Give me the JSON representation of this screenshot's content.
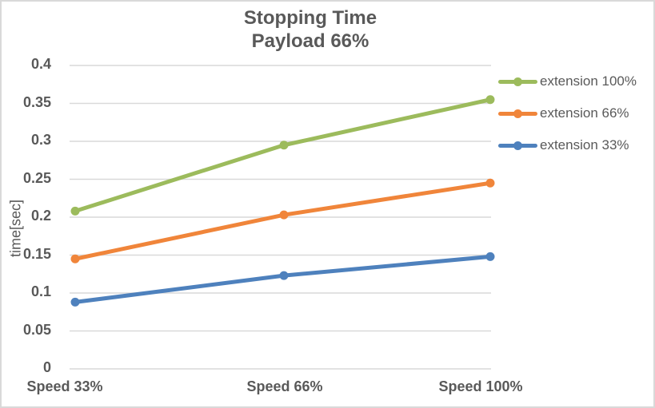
{
  "chart_data": {
    "type": "line",
    "title": "Stopping Time",
    "subtitle": "Payload 66%",
    "categories": [
      "Speed 33%",
      "Speed 66%",
      "Speed 100%"
    ],
    "series": [
      {
        "name": "extension 100%",
        "color": "#9CBB5C",
        "values": [
          0.208,
          0.295,
          0.355
        ]
      },
      {
        "name": "extension 66%",
        "color": "#F0853A",
        "values": [
          0.145,
          0.203,
          0.245
        ]
      },
      {
        "name": "extension 33%",
        "color": "#4E81BD",
        "values": [
          0.088,
          0.123,
          0.148
        ]
      }
    ],
    "xlabel": "",
    "ylabel": "time[sec]",
    "ylim": [
      0,
      0.4
    ],
    "ytick_step": 0.05,
    "yticks": [
      "0",
      "0.05",
      "0.1",
      "0.15",
      "0.2",
      "0.25",
      "0.3",
      "0.35",
      "0.4"
    ],
    "grid": true,
    "legend_position": "right",
    "marker": "circle"
  },
  "colors": {
    "text": "#595959",
    "gridline": "#d9d9d9",
    "frame_border": "#d9d9d9",
    "background": "#ffffff"
  }
}
